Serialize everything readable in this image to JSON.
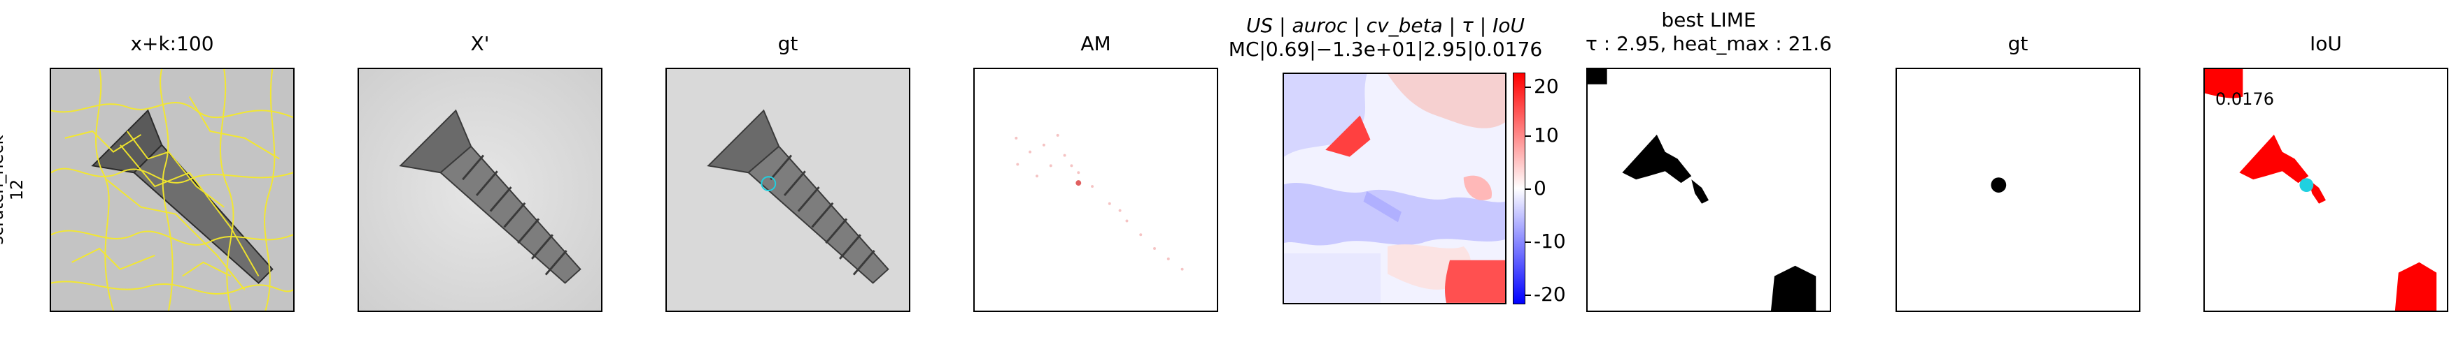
{
  "row_label": {
    "line1": "scratch_neck",
    "line2": "12"
  },
  "panels": [
    {
      "title": "x+k:100"
    },
    {
      "title": "X'"
    },
    {
      "title": "gt"
    },
    {
      "title": "AM"
    },
    {
      "title_line1": "US | auroc | cv_beta | τ | IoU",
      "title_line2": "MC|0.69|−1.3e+01|2.95|0.0176"
    },
    {
      "title_line1": "best LIME",
      "title_line2": "τ : 2.95, heat_max : 21.6"
    },
    {
      "title": "gt"
    },
    {
      "title": "IoU",
      "annotation": "0.0176"
    }
  ],
  "chart_data": [
    {
      "type": "heatmap",
      "title": "US | auroc | cv_beta | τ | IoU",
      "subtitle": "MC|0.69|−1.3e+01|2.95|0.0176",
      "colorbar": {
        "ticks": [
          20,
          10,
          0,
          -10,
          -20
        ],
        "range": [
          -21.6,
          21.6
        ],
        "colormap": "bwr"
      }
    }
  ],
  "colors": {
    "superpixel_edges": "#f5e92a",
    "gt_circle": "#20d0e0",
    "iou_red": "#ff0000",
    "lime_black": "#000000"
  }
}
